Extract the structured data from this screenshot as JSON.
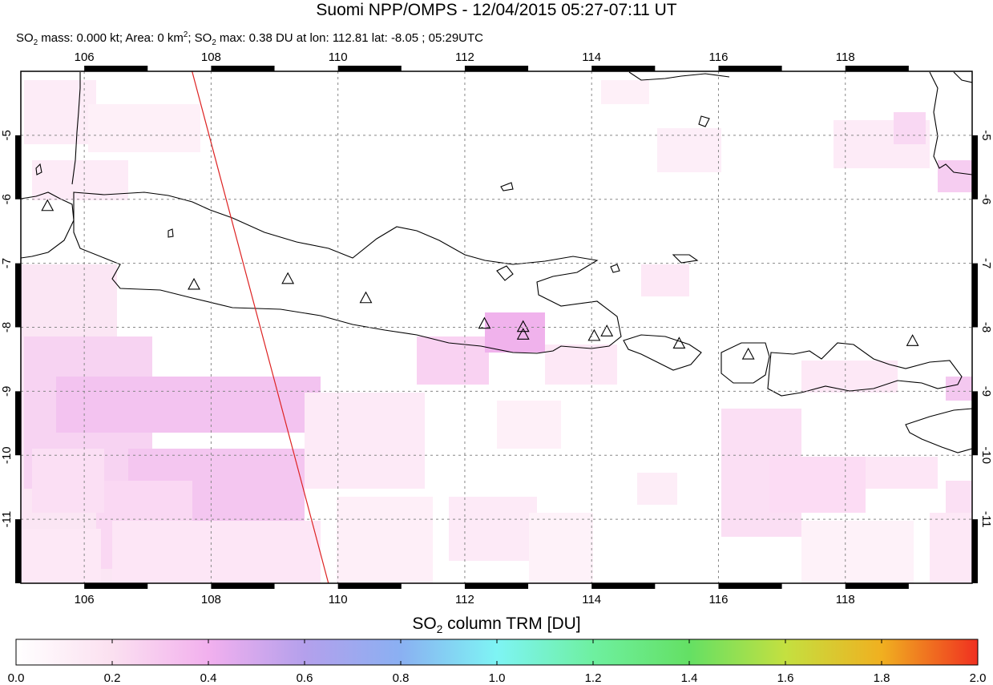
{
  "header": {
    "title": "Suomi NPP/OMPS - 12/04/2015 05:27-07:11 UT",
    "stats": {
      "mass_label": "SO",
      "mass_text": " mass: 0.000 kt; Area: 0 km",
      "max_label": "; SO",
      "max_text": " max: 0.38 DU at lon: 112.81 lat: -8.05 ; 05:29UTC",
      "sub2": "2",
      "sup2": "2"
    }
  },
  "map": {
    "lon_range": [
      105,
      120
    ],
    "lat_range": [
      -12,
      -4
    ],
    "lon_ticks": [
      "106",
      "108",
      "110",
      "112",
      "114",
      "116",
      "118"
    ],
    "lat_ticks": [
      "-5",
      "-6",
      "-7",
      "-8",
      "-9",
      "-10",
      "-11"
    ],
    "lon_tick_values": [
      106,
      108,
      110,
      112,
      114,
      116,
      118
    ],
    "lat_tick_values": [
      -5,
      -6,
      -7,
      -8,
      -9,
      -10,
      -11
    ],
    "orbit_track": {
      "from": [
        107.7,
        -4.0
      ],
      "to": [
        109.85,
        -12.0
      ],
      "color": "#dd2222"
    },
    "volcanoes": [
      [
        105.42,
        -6.1
      ],
      [
        107.73,
        -7.33
      ],
      [
        109.21,
        -7.24
      ],
      [
        110.44,
        -7.54
      ],
      [
        112.31,
        -7.94
      ],
      [
        112.92,
        -7.99
      ],
      [
        112.92,
        -8.11
      ],
      [
        114.04,
        -8.13
      ],
      [
        114.24,
        -8.06
      ],
      [
        115.38,
        -8.25
      ],
      [
        116.47,
        -8.42
      ],
      [
        119.06,
        -8.21
      ]
    ],
    "so2_max_point": [
      112.81,
      -8.05
    ]
  },
  "colorbar": {
    "title_prefix": "SO",
    "title_sub": "2",
    "title_suffix": " column TRM [DU]",
    "ticks": [
      "0.0",
      "0.2",
      "0.4",
      "0.6",
      "0.8",
      "1.0",
      "1.2",
      "1.4",
      "1.6",
      "1.8",
      "2.0"
    ],
    "tick_values": [
      0.0,
      0.2,
      0.4,
      0.6,
      0.8,
      1.0,
      1.2,
      1.4,
      1.6,
      1.8,
      2.0
    ],
    "stops": [
      "#ffffff",
      "#fbe0f0",
      "#f2b0ee",
      "#b4a0ec",
      "#8ab0f2",
      "#7ef4f4",
      "#6ef0a0",
      "#64e064",
      "#c4e040",
      "#f0b020",
      "#f03020"
    ]
  }
}
